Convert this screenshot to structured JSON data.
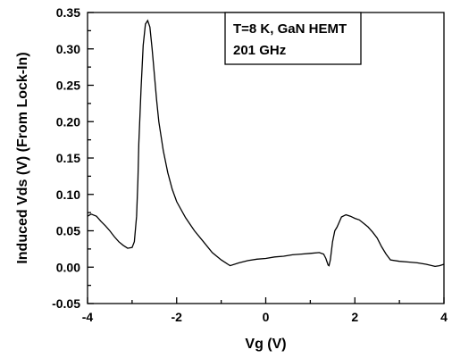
{
  "chart_data": {
    "type": "line",
    "title": "",
    "xlabel": "Vg (V)",
    "ylabel": "Induced Vds (V) (From Lock-In)",
    "xlim": [
      -4,
      4
    ],
    "ylim": [
      -0.05,
      0.35
    ],
    "xticks": [
      "-4",
      "-2",
      "0",
      "2",
      "4"
    ],
    "yticks": [
      "-0.05",
      "0.00",
      "0.05",
      "0.10",
      "0.15",
      "0.20",
      "0.25",
      "0.30",
      "0.35"
    ],
    "grid": false,
    "legend": "none",
    "annotation": [
      "T=8 K, GaN HEMT",
      "201 GHz"
    ],
    "line_color": "#000000",
    "series": [
      {
        "x": [
          -4.0,
          -3.92,
          -3.8,
          -3.7,
          -3.6,
          -3.5,
          -3.4,
          -3.3,
          -3.2,
          -3.1,
          -3.0,
          -2.95,
          -2.9,
          -2.87,
          -2.85,
          -2.8,
          -2.75,
          -2.7,
          -2.65,
          -2.6,
          -2.55,
          -2.5,
          -2.45,
          -2.4,
          -2.3,
          -2.2,
          -2.1,
          -2.0,
          -1.8,
          -1.6,
          -1.4,
          -1.2,
          -1.0,
          -0.85,
          -0.8,
          -0.6,
          -0.4,
          -0.2,
          0.0,
          0.2,
          0.4,
          0.6,
          0.8,
          1.0,
          1.2,
          1.3,
          1.35,
          1.4,
          1.42,
          1.45,
          1.5,
          1.55,
          1.6,
          1.65,
          1.7,
          1.8,
          1.9,
          2.0,
          2.1,
          2.2,
          2.3,
          2.4,
          2.5,
          2.6,
          2.7,
          2.8,
          3.0,
          3.2,
          3.4,
          3.6,
          3.8,
          3.9,
          4.0
        ],
        "y": [
          0.07,
          0.073,
          0.07,
          0.063,
          0.057,
          0.05,
          0.042,
          0.035,
          0.03,
          0.026,
          0.027,
          0.035,
          0.07,
          0.12,
          0.17,
          0.245,
          0.305,
          0.334,
          0.339,
          0.33,
          0.3,
          0.265,
          0.23,
          0.2,
          0.16,
          0.13,
          0.107,
          0.09,
          0.068,
          0.05,
          0.035,
          0.02,
          0.01,
          0.004,
          0.002,
          0.006,
          0.009,
          0.011,
          0.012,
          0.014,
          0.015,
          0.017,
          0.018,
          0.019,
          0.02,
          0.018,
          0.012,
          0.003,
          0.002,
          0.01,
          0.035,
          0.05,
          0.055,
          0.062,
          0.069,
          0.072,
          0.07,
          0.067,
          0.065,
          0.06,
          0.055,
          0.048,
          0.04,
          0.028,
          0.018,
          0.01,
          0.008,
          0.007,
          0.006,
          0.004,
          0.001,
          0.002,
          0.004
        ]
      }
    ]
  }
}
